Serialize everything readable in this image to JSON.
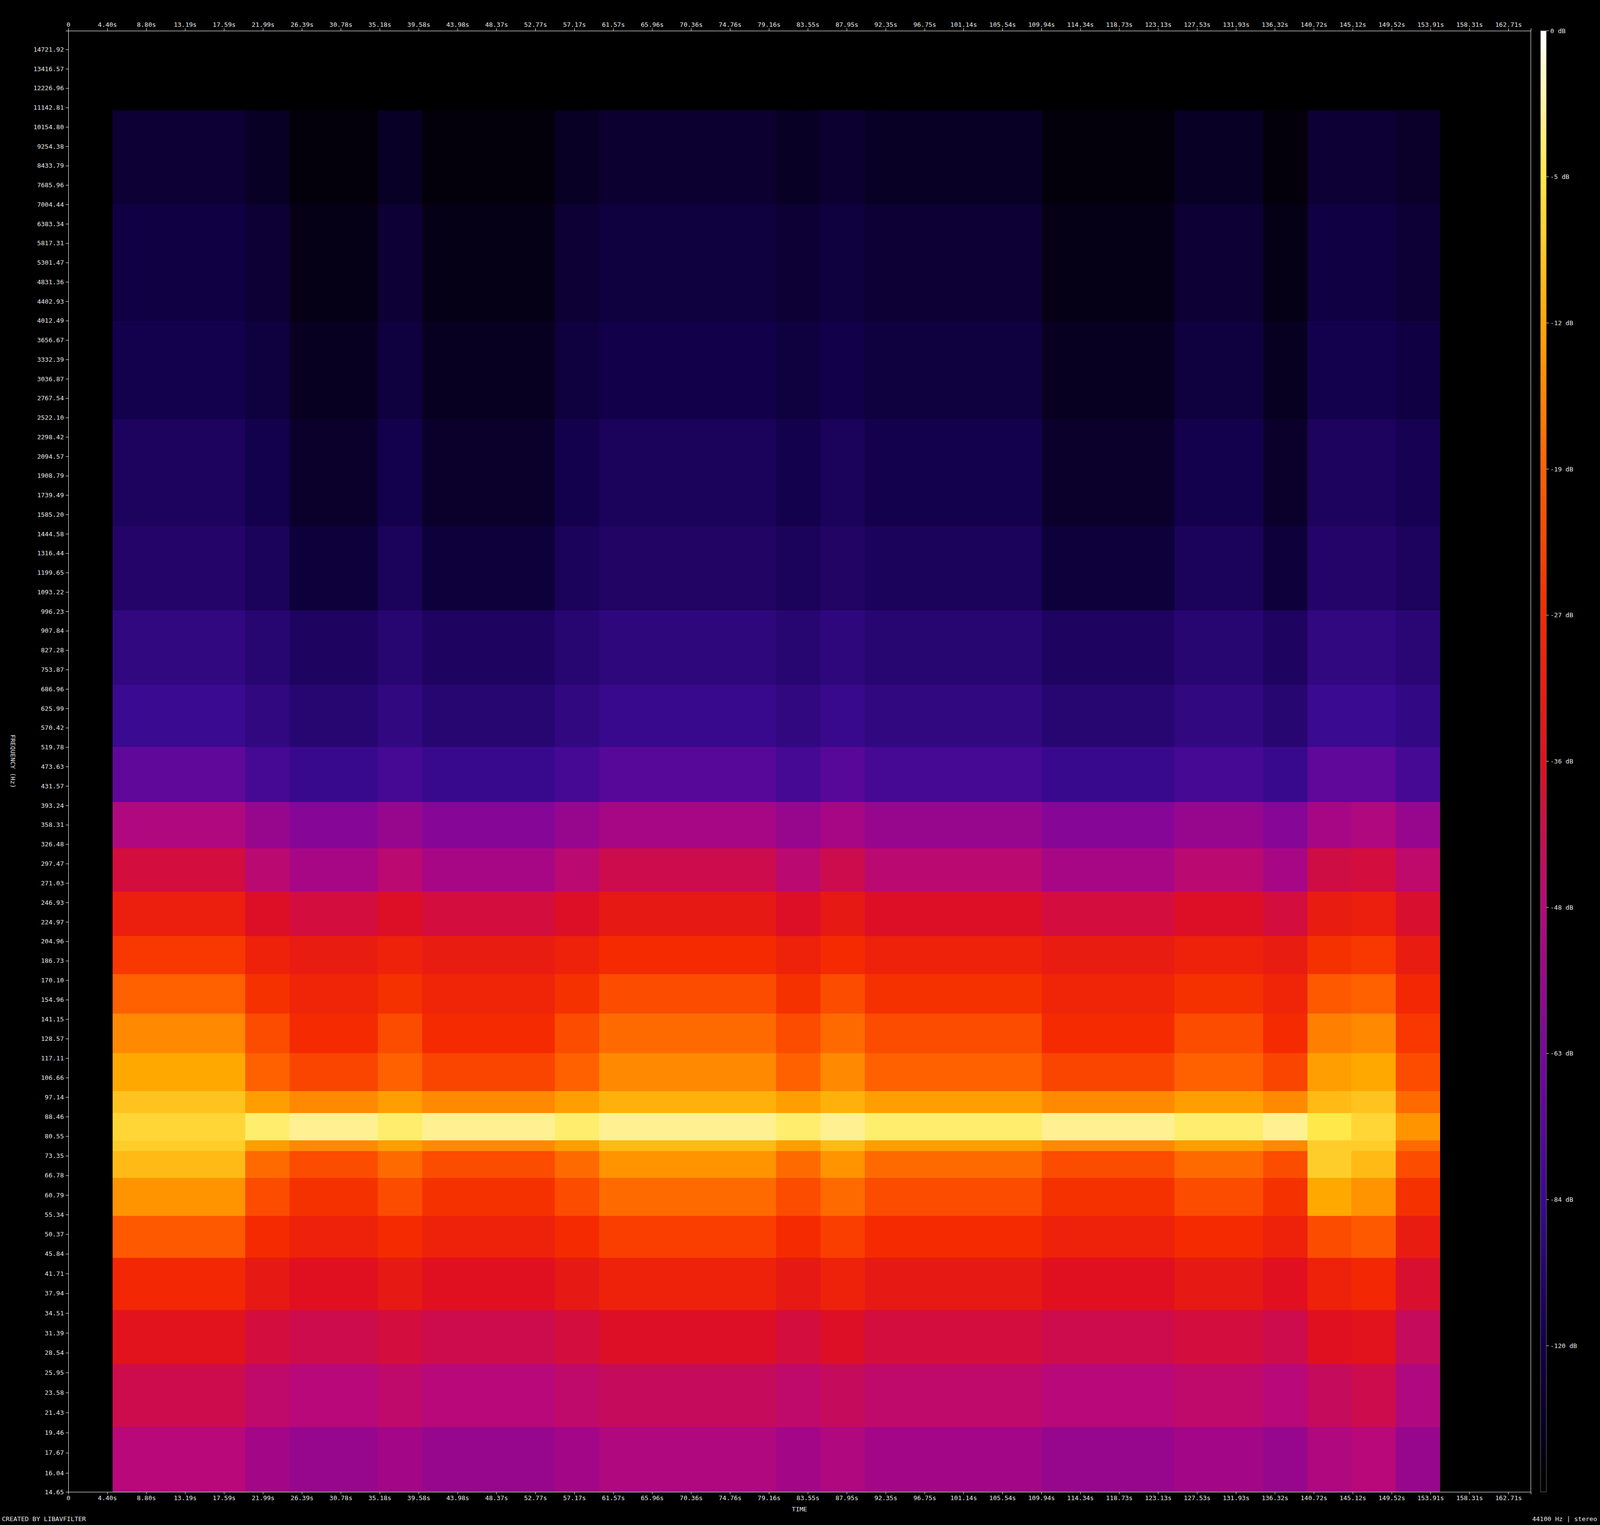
{
  "chart_data": {
    "type": "heatmap",
    "x_label": "TIME",
    "y_label": "FREQUENCY (Hz)",
    "annotations": [
      "CREATED BY LIBAVFILTER",
      "44100 Hz | stereo"
    ],
    "log": "y",
    "grid": false,
    "xlim": [
      0,
      165.25
    ],
    "ylim": [
      14.65,
      16100
    ],
    "xticks": [
      0,
      {
        "value": 4.4,
        "label": "4.40s"
      },
      {
        "value": 8.8,
        "label": "8.80s"
      },
      {
        "value": 13.19,
        "label": "13.19s"
      },
      {
        "value": 17.59,
        "label": "17.59s"
      },
      {
        "value": 21.99,
        "label": "21.99s"
      },
      {
        "value": 26.39,
        "label": "26.39s"
      },
      {
        "value": 30.78,
        "label": "30.78s"
      },
      {
        "value": 35.18,
        "label": "35.18s"
      },
      {
        "value": 39.58,
        "label": "39.58s"
      },
      {
        "value": 43.98,
        "label": "43.98s"
      },
      {
        "value": 48.37,
        "label": "48.37s"
      },
      {
        "value": 52.77,
        "label": "52.77s"
      },
      {
        "value": 57.17,
        "label": "57.17s"
      },
      {
        "value": 61.57,
        "label": "61.57s"
      },
      {
        "value": 65.96,
        "label": "65.96s"
      },
      {
        "value": 70.36,
        "label": "70.36s"
      },
      {
        "value": 74.76,
        "label": "74.76s"
      },
      {
        "value": 79.16,
        "label": "79.16s"
      },
      {
        "value": 83.55,
        "label": "83.55s"
      },
      {
        "value": 87.95,
        "label": "87.95s"
      },
      {
        "value": 92.35,
        "label": "92.35s"
      },
      {
        "value": 96.75,
        "label": "96.75s"
      },
      {
        "value": 101.14,
        "label": "101.14s"
      },
      {
        "value": 105.54,
        "label": "105.54s"
      },
      {
        "value": 109.94,
        "label": "109.94s"
      },
      {
        "value": 114.34,
        "label": "114.34s"
      },
      {
        "value": 118.73,
        "label": "118.73s"
      },
      {
        "value": 123.13,
        "label": "123.13s"
      },
      {
        "value": 127.53,
        "label": "127.53s"
      },
      {
        "value": 131.93,
        "label": "131.93s"
      },
      {
        "value": 136.32,
        "label": "136.32s"
      },
      {
        "value": 140.72,
        "label": "140.72s"
      },
      {
        "value": 145.12,
        "label": "145.12s"
      },
      {
        "value": 149.52,
        "label": "149.52s"
      },
      {
        "value": 153.91,
        "label": "153.91s"
      },
      {
        "value": 158.31,
        "label": "158.31s"
      },
      {
        "value": 162.71,
        "label": "162.71s"
      }
    ],
    "yticks": [
      14.65,
      16.04,
      17.67,
      19.46,
      21.43,
      23.58,
      25.95,
      28.54,
      31.39,
      34.51,
      37.94,
      41.71,
      45.84,
      50.37,
      55.34,
      60.79,
      66.78,
      73.35,
      80.55,
      88.46,
      97.14,
      106.66,
      117.11,
      128.57,
      141.15,
      154.96,
      {
        "value": 170.1,
        "label": "170.10"
      },
      186.73,
      204.96,
      224.97,
      246.93,
      271.03,
      297.47,
      326.48,
      358.31,
      393.24,
      431.57,
      473.63,
      519.78,
      570.42,
      625.99,
      686.96,
      753.87,
      827.28,
      907.84,
      996.23,
      1093.22,
      1199.65,
      1316.44,
      1444.58,
      {
        "value": 1585.2,
        "label": "1585.20"
      },
      1739.49,
      1908.79,
      2094.57,
      2298.42,
      {
        "value": 2522.1,
        "label": "2522.10"
      },
      2767.54,
      3036.87,
      3332.39,
      3656.67,
      4012.49,
      4402.93,
      4831.36,
      5301.47,
      5817.31,
      6383.34,
      7004.44,
      7685.96,
      8433.79,
      9254.38,
      {
        "value": 10154.8,
        "label": "10154.80"
      },
      11142.81,
      12226.96,
      13416.57,
      14721.92
    ],
    "x_edges": [
      0,
      5,
      10,
      15,
      20,
      25,
      30,
      35,
      40,
      45,
      50,
      55,
      60,
      65,
      70,
      75,
      80,
      85,
      90,
      95,
      100,
      105,
      110,
      115,
      120,
      125,
      130,
      135,
      140,
      145,
      150,
      155,
      160,
      165.25
    ],
    "y_edges": [
      14.65,
      20,
      27,
      35,
      45,
      55,
      66,
      75,
      79,
      90,
      100,
      120,
      145,
      175,
      210,
      260,
      320,
      400,
      520,
      700,
      1000,
      1500,
      2500,
      4000,
      7000,
      11000,
      16100
    ],
    "values": [
      [
        -160,
        -48,
        -48,
        -48,
        -53,
        -56,
        -56,
        -53,
        -56,
        -56,
        -56,
        -53,
        -50,
        -50,
        -50,
        -50,
        -53,
        -50,
        -53,
        -53,
        -53,
        -53,
        -56,
        -56,
        -56,
        -53,
        -53,
        -56,
        -50,
        -48,
        -56,
        -160,
        -160
      ],
      [
        -160,
        -42,
        -42,
        -42,
        -46,
        -48,
        -48,
        -46,
        -48,
        -48,
        -48,
        -46,
        -44,
        -44,
        -44,
        -44,
        -46,
        -44,
        -46,
        -46,
        -46,
        -46,
        -48,
        -48,
        -48,
        -46,
        -46,
        -48,
        -44,
        -42,
        -50,
        -160,
        -160
      ],
      [
        -160,
        -35,
        -35,
        -35,
        -40,
        -42,
        -42,
        -40,
        -42,
        -42,
        -42,
        -40,
        -37,
        -37,
        -37,
        -37,
        -40,
        -37,
        -40,
        -40,
        -40,
        -40,
        -42,
        -42,
        -42,
        -40,
        -40,
        -42,
        -36,
        -35,
        -44,
        -160,
        -160
      ],
      [
        -160,
        -28,
        -28,
        -28,
        -33,
        -36,
        -36,
        -33,
        -36,
        -36,
        -36,
        -33,
        -30,
        -30,
        -30,
        -30,
        -33,
        -30,
        -33,
        -33,
        -33,
        -33,
        -36,
        -36,
        -36,
        -33,
        -33,
        -36,
        -30,
        -28,
        -38,
        -160,
        -160
      ],
      [
        -160,
        -20,
        -20,
        -20,
        -27,
        -30,
        -30,
        -27,
        -30,
        -30,
        -30,
        -27,
        -24,
        -24,
        -24,
        -24,
        -27,
        -24,
        -27,
        -27,
        -27,
        -27,
        -30,
        -30,
        -30,
        -27,
        -27,
        -30,
        -22,
        -20,
        -32,
        -160,
        -160
      ],
      [
        -160,
        -14,
        -14,
        -14,
        -22,
        -26,
        -26,
        -22,
        -26,
        -26,
        -26,
        -22,
        -18,
        -18,
        -18,
        -18,
        -22,
        -18,
        -22,
        -22,
        -22,
        -22,
        -26,
        -26,
        -26,
        -22,
        -22,
        -26,
        -12,
        -14,
        -26,
        -160,
        -160
      ],
      [
        -160,
        -10,
        -10,
        -10,
        -18,
        -22,
        -22,
        -18,
        -22,
        -22,
        -22,
        -18,
        -14,
        -14,
        -14,
        -14,
        -18,
        -14,
        -18,
        -18,
        -18,
        -18,
        -22,
        -22,
        -22,
        -18,
        -18,
        -22,
        -8,
        -10,
        -22,
        -160,
        -160
      ],
      [
        -160,
        -8,
        -8,
        -8,
        -13,
        -15,
        -15,
        -13,
        -15,
        -15,
        -15,
        -13,
        -10,
        -10,
        -10,
        -10,
        -13,
        -10,
        -13,
        -13,
        -13,
        -13,
        -15,
        -15,
        -15,
        -13,
        -13,
        -15,
        -8,
        -8,
        -18,
        -160,
        -160
      ],
      [
        -160,
        -7,
        -7,
        -7,
        -4,
        -3,
        -3,
        -4,
        -3,
        -3,
        -3,
        -4,
        -3,
        -3,
        -3,
        -3,
        -4,
        -3,
        -4,
        -4,
        -4,
        -4,
        -3,
        -3,
        -3,
        -4,
        -4,
        -3,
        -5,
        -7,
        -14,
        -160,
        -160
      ],
      [
        -160,
        -9,
        -9,
        -9,
        -13,
        -15,
        -15,
        -13,
        -15,
        -15,
        -15,
        -13,
        -11,
        -11,
        -11,
        -11,
        -13,
        -11,
        -13,
        -13,
        -13,
        -13,
        -15,
        -15,
        -15,
        -13,
        -13,
        -15,
        -10,
        -9,
        -18,
        -160,
        -160
      ],
      [
        -160,
        -12,
        -12,
        -12,
        -19,
        -23,
        -23,
        -19,
        -23,
        -23,
        -23,
        -19,
        -15,
        -15,
        -15,
        -15,
        -19,
        -15,
        -19,
        -19,
        -19,
        -19,
        -23,
        -23,
        -23,
        -19,
        -19,
        -23,
        -13,
        -12,
        -22,
        -160,
        -160
      ],
      [
        -160,
        -15,
        -15,
        -15,
        -22,
        -27,
        -27,
        -22,
        -27,
        -27,
        -27,
        -22,
        -18,
        -18,
        -18,
        -18,
        -22,
        -18,
        -22,
        -22,
        -22,
        -22,
        -27,
        -27,
        -27,
        -22,
        -22,
        -27,
        -16,
        -15,
        -25,
        -160,
        -160
      ],
      [
        -160,
        -19,
        -19,
        -19,
        -26,
        -29,
        -29,
        -26,
        -29,
        -29,
        -29,
        -26,
        -22,
        -22,
        -22,
        -22,
        -26,
        -22,
        -26,
        -26,
        -26,
        -26,
        -29,
        -29,
        -29,
        -26,
        -26,
        -29,
        -20,
        -19,
        -28,
        -160,
        -160
      ],
      [
        -160,
        -25,
        -25,
        -25,
        -30,
        -32,
        -32,
        -30,
        -32,
        -32,
        -32,
        -30,
        -27,
        -27,
        -27,
        -27,
        -30,
        -27,
        -30,
        -30,
        -30,
        -30,
        -32,
        -32,
        -32,
        -30,
        -30,
        -32,
        -26,
        -25,
        -32,
        -160,
        -160
      ],
      [
        -160,
        -31,
        -31,
        -31,
        -37,
        -40,
        -40,
        -37,
        -40,
        -40,
        -40,
        -37,
        -33,
        -33,
        -33,
        -33,
        -37,
        -33,
        -37,
        -37,
        -37,
        -37,
        -40,
        -40,
        -40,
        -37,
        -37,
        -40,
        -32,
        -31,
        -38,
        -160,
        -160
      ],
      [
        -160,
        -40,
        -40,
        -40,
        -47,
        -52,
        -52,
        -47,
        -52,
        -52,
        -52,
        -47,
        -42,
        -42,
        -42,
        -42,
        -47,
        -42,
        -47,
        -47,
        -47,
        -47,
        -52,
        -52,
        -52,
        -47,
        -47,
        -52,
        -41,
        -40,
        -46,
        -160,
        -160
      ],
      [
        -160,
        -50,
        -50,
        -50,
        -56,
        -60,
        -60,
        -56,
        -60,
        -60,
        -60,
        -56,
        -52,
        -52,
        -52,
        -52,
        -56,
        -52,
        -56,
        -56,
        -56,
        -56,
        -60,
        -60,
        -60,
        -56,
        -56,
        -60,
        -52,
        -50,
        -56,
        -160,
        -160
      ],
      [
        -160,
        -72,
        -72,
        -72,
        -80,
        -86,
        -86,
        -80,
        -86,
        -86,
        -86,
        -80,
        -74,
        -74,
        -74,
        -74,
        -80,
        -74,
        -80,
        -80,
        -80,
        -80,
        -86,
        -86,
        -86,
        -80,
        -80,
        -86,
        -72,
        -72,
        -80,
        -160,
        -160
      ],
      [
        -160,
        -84,
        -84,
        -84,
        -92,
        -100,
        -100,
        -92,
        -100,
        -100,
        -100,
        -92,
        -86,
        -86,
        -86,
        -86,
        -92,
        -86,
        -92,
        -92,
        -92,
        -92,
        -100,
        -100,
        -100,
        -92,
        -92,
        -100,
        -84,
        -84,
        -90,
        -160,
        -160
      ],
      [
        -160,
        -92,
        -92,
        -92,
        -100,
        -108,
        -108,
        -100,
        -108,
        -108,
        -108,
        -100,
        -94,
        -94,
        -94,
        -94,
        -100,
        -94,
        -100,
        -100,
        -100,
        -100,
        -108,
        -108,
        -108,
        -100,
        -100,
        -108,
        -92,
        -92,
        -98,
        -160,
        -160
      ],
      [
        -160,
        -104,
        -104,
        -104,
        -112,
        -128,
        -128,
        -112,
        -128,
        -128,
        -128,
        -112,
        -106,
        -106,
        -106,
        -106,
        -112,
        -106,
        -112,
        -112,
        -112,
        -112,
        -128,
        -128,
        -128,
        -112,
        -112,
        -128,
        -104,
        -104,
        -110,
        -160,
        -160
      ],
      [
        -160,
        -110,
        -110,
        -110,
        -118,
        -136,
        -136,
        -118,
        -136,
        -136,
        -136,
        -118,
        -112,
        -112,
        -112,
        -112,
        -118,
        -112,
        -118,
        -118,
        -118,
        -118,
        -136,
        -136,
        -136,
        -118,
        -118,
        -136,
        -110,
        -110,
        -116,
        -160,
        -160
      ],
      [
        -160,
        -118,
        -118,
        -118,
        -126,
        -142,
        -142,
        -126,
        -142,
        -142,
        -142,
        -126,
        -120,
        -120,
        -120,
        -120,
        -126,
        -120,
        -126,
        -126,
        -126,
        -126,
        -142,
        -142,
        -142,
        -126,
        -126,
        -142,
        -118,
        -118,
        -124,
        -160,
        -160
      ],
      [
        -160,
        -124,
        -124,
        -124,
        -132,
        -148,
        -148,
        -132,
        -148,
        -148,
        -148,
        -132,
        -126,
        -126,
        -126,
        -126,
        -132,
        -126,
        -132,
        -132,
        -132,
        -132,
        -148,
        -148,
        -148,
        -132,
        -132,
        -148,
        -124,
        -124,
        -130,
        -160,
        -160
      ],
      [
        -160,
        -132,
        -132,
        -132,
        -140,
        -154,
        -154,
        -140,
        -154,
        -154,
        -154,
        -140,
        -134,
        -134,
        -134,
        -134,
        -140,
        -134,
        -140,
        -140,
        -140,
        -140,
        -154,
        -154,
        -154,
        -140,
        -140,
        -154,
        -132,
        -132,
        -138,
        -160,
        -160
      ],
      [
        -160,
        -160,
        -160,
        -160,
        -160,
        -160,
        -160,
        -160,
        -160,
        -160,
        -160,
        -160,
        -160,
        -160,
        -160,
        -160,
        -160,
        -160,
        -160,
        -160,
        -160,
        -160,
        -160,
        -160,
        -160,
        -160,
        -160,
        -160,
        -160,
        -160,
        -160,
        -160,
        -160
      ]
    ],
    "colorbar_range": [
      -160,
      0
    ],
    "colorbar_ticks": [
      {
        "value": 0,
        "label": "0 dB"
      },
      {
        "value": -5,
        "label": "-5 dB"
      },
      {
        "value": -12,
        "label": "-12 dB"
      },
      {
        "value": -19,
        "label": "-19 dB"
      },
      {
        "value": -27,
        "label": "-27 dB"
      },
      {
        "value": -36,
        "label": "-36 dB"
      },
      {
        "value": -48,
        "label": "-48 dB"
      },
      {
        "value": -63,
        "label": "-63 dB"
      },
      {
        "value": -84,
        "label": "-84 dB"
      },
      {
        "value": -120,
        "label": "-120 dB"
      }
    ]
  }
}
